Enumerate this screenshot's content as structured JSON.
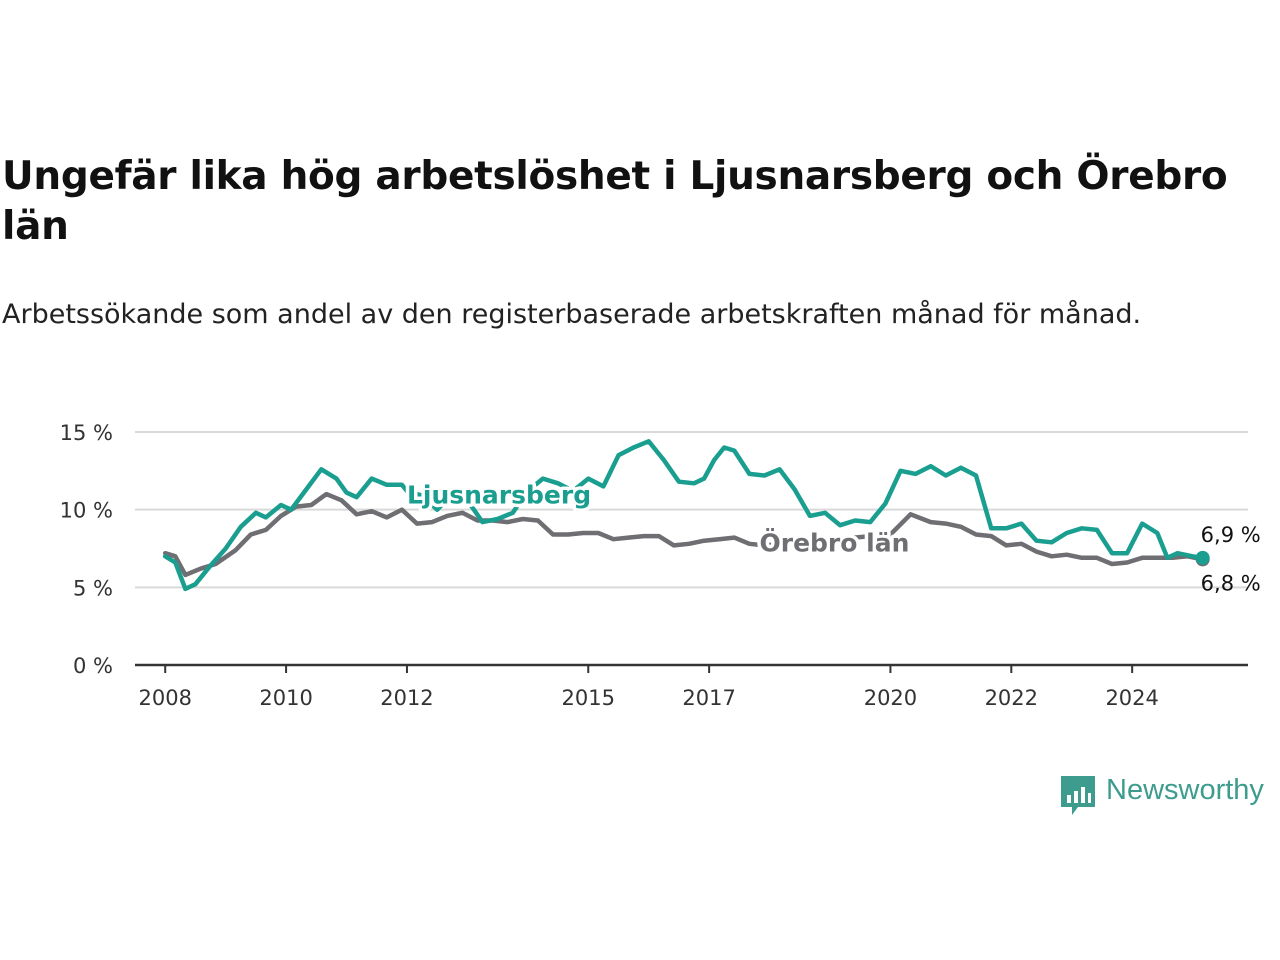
{
  "header": {
    "title": "Ungefär lika hög arbetslöshet i Ljusnarsberg och Örebro län",
    "subtitle": "Arbetssökande som andel av den registerbaserade arbetskraften månad för månad."
  },
  "brand": {
    "name": "Newsworthy",
    "color": "#3d9c8e",
    "icon": "newsworthy-chart-bubble-icon"
  },
  "chart_data": {
    "type": "line",
    "x_type": "date",
    "xlim": [
      "2007-07",
      "2025-12"
    ],
    "ylim": [
      0,
      15
    ],
    "y_ticks": [
      {
        "value": 0,
        "label": "0 %"
      },
      {
        "value": 5,
        "label": "5 %"
      },
      {
        "value": 10,
        "label": "10 %"
      },
      {
        "value": 15,
        "label": "15 %"
      }
    ],
    "x_ticks": [
      {
        "value": "2008-01",
        "label": "2008"
      },
      {
        "value": "2010-01",
        "label": "2010"
      },
      {
        "value": "2012-01",
        "label": "2012"
      },
      {
        "value": "2015-01",
        "label": "2015"
      },
      {
        "value": "2017-01",
        "label": "2017"
      },
      {
        "value": "2020-01",
        "label": "2020"
      },
      {
        "value": "2022-01",
        "label": "2022"
      },
      {
        "value": "2024-01",
        "label": "2024"
      }
    ],
    "grid": "horizontal",
    "series": [
      {
        "name": "Ljusnarsberg",
        "color": "#1a9e8f",
        "end_label": "6,9 %",
        "label_at": {
          "x": "2012-01",
          "y": 10.4
        },
        "points": [
          [
            "2008-01",
            7.0
          ],
          [
            "2008-03",
            6.6
          ],
          [
            "2008-05",
            4.9
          ],
          [
            "2008-07",
            5.2
          ],
          [
            "2008-10",
            6.4
          ],
          [
            "2009-01",
            7.5
          ],
          [
            "2009-04",
            8.9
          ],
          [
            "2009-07",
            9.8
          ],
          [
            "2009-09",
            9.5
          ],
          [
            "2009-12",
            10.3
          ],
          [
            "2010-02",
            10.0
          ],
          [
            "2010-05",
            11.3
          ],
          [
            "2010-08",
            12.6
          ],
          [
            "2010-11",
            12.0
          ],
          [
            "2011-01",
            11.1
          ],
          [
            "2011-03",
            10.8
          ],
          [
            "2011-06",
            12.0
          ],
          [
            "2011-09",
            11.6
          ],
          [
            "2011-12",
            11.6
          ],
          [
            "2012-01",
            11.2
          ],
          [
            "2012-04",
            10.9
          ],
          [
            "2012-07",
            10.0
          ],
          [
            "2012-10",
            11.0
          ],
          [
            "2013-01",
            10.6
          ],
          [
            "2013-04",
            9.2
          ],
          [
            "2013-07",
            9.4
          ],
          [
            "2013-10",
            9.8
          ],
          [
            "2014-01",
            11.2
          ],
          [
            "2014-04",
            12.0
          ],
          [
            "2014-07",
            11.7
          ],
          [
            "2014-10",
            11.2
          ],
          [
            "2015-01",
            12.0
          ],
          [
            "2015-04",
            11.5
          ],
          [
            "2015-07",
            13.5
          ],
          [
            "2015-10",
            14.0
          ],
          [
            "2016-01",
            14.4
          ],
          [
            "2016-04",
            13.2
          ],
          [
            "2016-07",
            11.8
          ],
          [
            "2016-10",
            11.7
          ],
          [
            "2016-12",
            12.0
          ],
          [
            "2017-02",
            13.2
          ],
          [
            "2017-04",
            14.0
          ],
          [
            "2017-06",
            13.8
          ],
          [
            "2017-09",
            12.3
          ],
          [
            "2017-12",
            12.2
          ],
          [
            "2018-03",
            12.6
          ],
          [
            "2018-06",
            11.3
          ],
          [
            "2018-09",
            9.6
          ],
          [
            "2018-12",
            9.8
          ],
          [
            "2019-03",
            9.0
          ],
          [
            "2019-06",
            9.3
          ],
          [
            "2019-09",
            9.2
          ],
          [
            "2019-12",
            10.4
          ],
          [
            "2020-03",
            12.5
          ],
          [
            "2020-06",
            12.3
          ],
          [
            "2020-09",
            12.8
          ],
          [
            "2020-12",
            12.2
          ],
          [
            "2021-03",
            12.7
          ],
          [
            "2021-06",
            12.2
          ],
          [
            "2021-09",
            8.8
          ],
          [
            "2021-12",
            8.8
          ],
          [
            "2022-03",
            9.1
          ],
          [
            "2022-06",
            8.0
          ],
          [
            "2022-09",
            7.9
          ],
          [
            "2022-12",
            8.5
          ],
          [
            "2023-03",
            8.8
          ],
          [
            "2023-06",
            8.7
          ],
          [
            "2023-09",
            7.2
          ],
          [
            "2023-12",
            7.2
          ],
          [
            "2024-03",
            9.1
          ],
          [
            "2024-06",
            8.5
          ],
          [
            "2024-08",
            6.9
          ],
          [
            "2024-10",
            7.2
          ],
          [
            "2025-01",
            7.0
          ],
          [
            "2025-03",
            6.9
          ]
        ]
      },
      {
        "name": "Örebro län",
        "color": "#6e6e73",
        "end_label": "6,8 %",
        "label_at": {
          "x": "2017-11",
          "y": 7.3
        },
        "points": [
          [
            "2008-01",
            7.2
          ],
          [
            "2008-03",
            7.0
          ],
          [
            "2008-05",
            5.8
          ],
          [
            "2008-08",
            6.2
          ],
          [
            "2008-11",
            6.5
          ],
          [
            "2009-03",
            7.4
          ],
          [
            "2009-06",
            8.4
          ],
          [
            "2009-09",
            8.7
          ],
          [
            "2009-12",
            9.6
          ],
          [
            "2010-03",
            10.2
          ],
          [
            "2010-06",
            10.3
          ],
          [
            "2010-09",
            11.0
          ],
          [
            "2010-12",
            10.6
          ],
          [
            "2011-03",
            9.7
          ],
          [
            "2011-06",
            9.9
          ],
          [
            "2011-09",
            9.5
          ],
          [
            "2011-12",
            10.0
          ],
          [
            "2012-03",
            9.1
          ],
          [
            "2012-06",
            9.2
          ],
          [
            "2012-09",
            9.6
          ],
          [
            "2012-12",
            9.8
          ],
          [
            "2013-03",
            9.3
          ],
          [
            "2013-06",
            9.3
          ],
          [
            "2013-09",
            9.2
          ],
          [
            "2013-12",
            9.4
          ],
          [
            "2014-03",
            9.3
          ],
          [
            "2014-06",
            8.4
          ],
          [
            "2014-09",
            8.4
          ],
          [
            "2014-12",
            8.5
          ],
          [
            "2015-03",
            8.5
          ],
          [
            "2015-06",
            8.1
          ],
          [
            "2015-09",
            8.2
          ],
          [
            "2015-12",
            8.3
          ],
          [
            "2016-03",
            8.3
          ],
          [
            "2016-06",
            7.7
          ],
          [
            "2016-09",
            7.8
          ],
          [
            "2016-12",
            8.0
          ],
          [
            "2017-03",
            8.1
          ],
          [
            "2017-06",
            8.2
          ],
          [
            "2017-09",
            7.8
          ],
          [
            "2017-12",
            7.7
          ],
          [
            "2020-01",
            8.4
          ],
          [
            "2020-05",
            9.7
          ],
          [
            "2020-09",
            9.2
          ],
          [
            "2020-12",
            9.1
          ],
          [
            "2021-03",
            8.9
          ],
          [
            "2021-06",
            8.4
          ],
          [
            "2021-09",
            8.3
          ],
          [
            "2021-12",
            7.7
          ],
          [
            "2022-03",
            7.8
          ],
          [
            "2022-06",
            7.3
          ],
          [
            "2022-09",
            7.0
          ],
          [
            "2022-12",
            7.1
          ],
          [
            "2023-03",
            6.9
          ],
          [
            "2023-06",
            6.9
          ],
          [
            "2023-09",
            6.5
          ],
          [
            "2023-12",
            6.6
          ],
          [
            "2024-03",
            6.9
          ],
          [
            "2024-06",
            6.9
          ],
          [
            "2024-09",
            6.9
          ],
          [
            "2024-12",
            7.0
          ],
          [
            "2025-03",
            6.8
          ]
        ]
      }
    ]
  }
}
